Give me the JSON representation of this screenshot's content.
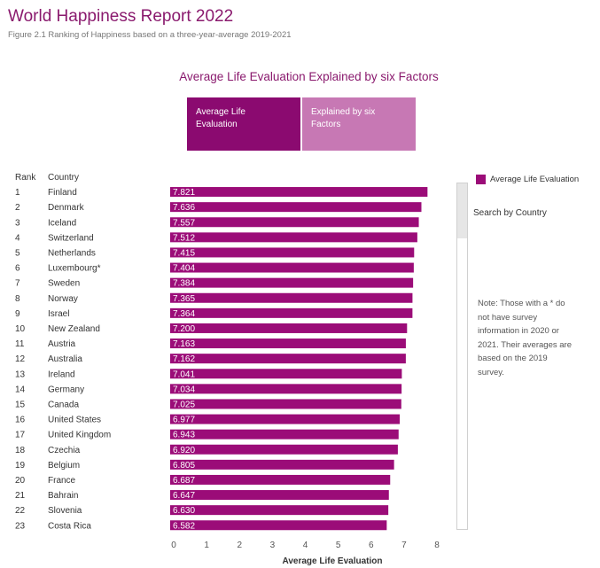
{
  "header": {
    "title": "World Happiness Report 2022",
    "subtitle": "Figure 2.1 Ranking of Happiness based on a three-year-average 2019-2021"
  },
  "toggle": {
    "option_a": "Average Life Evaluation",
    "option_b": "Explained by six Factors"
  },
  "columns": {
    "rank": "Rank",
    "country": "Country"
  },
  "side": {
    "search_label": "Search by Country",
    "note": "Note: Those with a * do not have survey information in 2020 or 2021. Their averages are based on the 2019 survey."
  },
  "colors": {
    "bar": "#9b0c78",
    "title": "#8a1a6e",
    "button_active": "#8b0a70",
    "button_inactive": "#c778b4"
  },
  "chart_data": {
    "type": "bar",
    "orientation": "horizontal",
    "title": "Average Life Evaluation Explained by six Factors",
    "xlabel": "Average Life Evaluation",
    "xlim": [
      0,
      8
    ],
    "xticks": [
      0,
      1,
      2,
      3,
      4,
      5,
      6,
      7,
      8
    ],
    "legend": {
      "position": "top-right",
      "entries": [
        "Average Life Evaluation"
      ]
    },
    "rows": [
      {
        "rank": "1",
        "country": "Finland",
        "value": 7.821
      },
      {
        "rank": "2",
        "country": "Denmark",
        "value": 7.636
      },
      {
        "rank": "3",
        "country": "Iceland",
        "value": 7.557
      },
      {
        "rank": "4",
        "country": "Switzerland",
        "value": 7.512
      },
      {
        "rank": "5",
        "country": "Netherlands",
        "value": 7.415
      },
      {
        "rank": "6",
        "country": "Luxembourg*",
        "value": 7.404
      },
      {
        "rank": "7",
        "country": "Sweden",
        "value": 7.384
      },
      {
        "rank": "8",
        "country": "Norway",
        "value": 7.365
      },
      {
        "rank": "9",
        "country": "Israel",
        "value": 7.364
      },
      {
        "rank": "10",
        "country": "New Zealand",
        "value": 7.2
      },
      {
        "rank": "11",
        "country": "Austria",
        "value": 7.163
      },
      {
        "rank": "12",
        "country": "Australia",
        "value": 7.162
      },
      {
        "rank": "13",
        "country": "Ireland",
        "value": 7.041
      },
      {
        "rank": "14",
        "country": "Germany",
        "value": 7.034
      },
      {
        "rank": "15",
        "country": "Canada",
        "value": 7.025
      },
      {
        "rank": "16",
        "country": "United States",
        "value": 6.977
      },
      {
        "rank": "17",
        "country": "United Kingdom",
        "value": 6.943
      },
      {
        "rank": "18",
        "country": "Czechia",
        "value": 6.92
      },
      {
        "rank": "19",
        "country": "Belgium",
        "value": 6.805
      },
      {
        "rank": "20",
        "country": "France",
        "value": 6.687
      },
      {
        "rank": "21",
        "country": "Bahrain",
        "value": 6.647
      },
      {
        "rank": "22",
        "country": "Slovenia",
        "value": 6.63
      },
      {
        "rank": "23",
        "country": "Costa Rica",
        "value": 6.582
      }
    ]
  }
}
